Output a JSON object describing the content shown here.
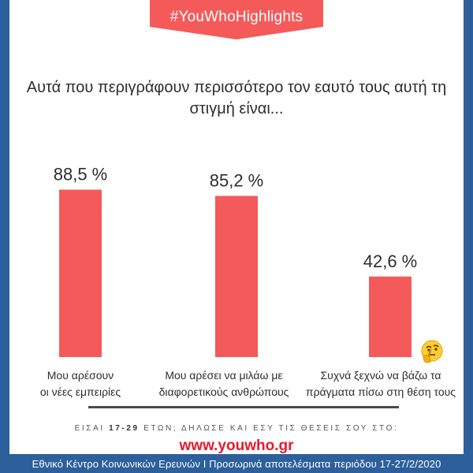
{
  "banner": {
    "hashtag": "#YouWhoHighlights"
  },
  "title": {
    "line1": "Αυτά που περιγράφουν περισσότερο τον εαυτό τους αυτή τη",
    "line2": "στιγμή είναι..."
  },
  "colors": {
    "bar": "#f45a5a",
    "banner": "#f45a5a",
    "border": "#2c5f9b",
    "text": "#2d2d2d",
    "site": "#e8192c"
  },
  "chart_data": {
    "type": "bar",
    "categories": [
      [
        "Μου αρέσουν",
        "οι νέες εμπειρίες"
      ],
      [
        "Μου αρέσει να μιλάω με",
        "διαφορετικούς ανθρώπους"
      ],
      [
        "Συχνά ξεχνώ να βάζω τα",
        "πράγματα πίσω στη θέση τους"
      ]
    ],
    "values": [
      88.5,
      85.2,
      42.6
    ],
    "value_labels": [
      "88,5 %",
      "85,2 %",
      "42,6 %"
    ],
    "unit": "%",
    "ylim": [
      0,
      100
    ],
    "grid": false
  },
  "footer": {
    "prefix": "ΕΙΣΑΙ ",
    "age": "17-29",
    "suffix": " ΕΤΩΝ; ΔΗΛΩΣΕ ΚΑΙ ΕΣΥ ΤΙΣ ΘΕΣΕΙΣ ΣΟΥ ΣΤΟ:",
    "site_main": "www.youwho",
    "site_tld": ".gr",
    "source": "Εθνικό Κέντρο Κοινωνικών Ερευνών Ι Προσωρινά αποτελέσματα περιόδου 17-27/2/2020"
  },
  "icons": {
    "emoji": "thinking-face-icon"
  }
}
